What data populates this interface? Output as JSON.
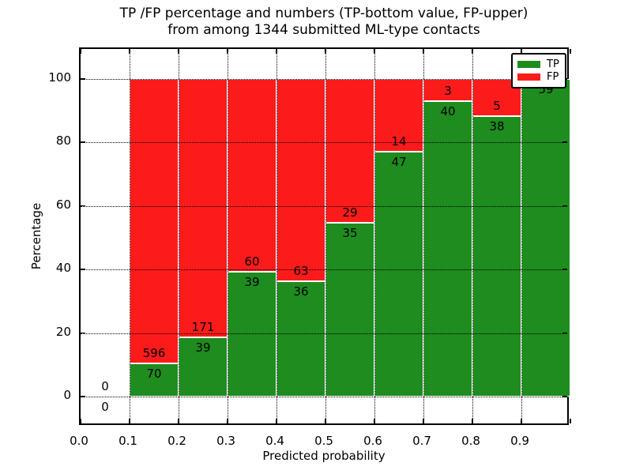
{
  "figure": {
    "title_line1": "TP /FP percentage and numbers (TP-bottom value, FP-upper)",
    "title_line2": "from among 1344 submitted ML-type contacts"
  },
  "chart_data": {
    "type": "bar",
    "stacked": true,
    "orientation": "vertical",
    "title": "TP /FP percentage and numbers (TP-bottom value, FP-upper) from among 1344 submitted ML-type contacts",
    "total_contacts": 1344,
    "xlabel": "Predicted probability",
    "ylabel": "Percentage",
    "xlim": [
      0.0,
      1.0
    ],
    "ylim": [
      -10,
      110
    ],
    "xtick_labels": [
      "0.0",
      "0.1",
      "0.2",
      "0.3",
      "0.4",
      "0.5",
      "0.6",
      "0.7",
      "0.8",
      "0.9"
    ],
    "xtick_values": [
      0.0,
      0.1,
      0.2,
      0.3,
      0.4,
      0.5,
      0.6,
      0.7,
      0.8,
      0.9
    ],
    "ytick_values": [
      0,
      20,
      40,
      60,
      80,
      100
    ],
    "grid": "dotted",
    "bar_edge_color": "#ffffff",
    "colors": {
      "tp": "#1e8c1e",
      "fp": "#fc1b1b"
    },
    "legend": {
      "position": "upper right",
      "entries": [
        {
          "label": "TP",
          "color": "#1e8c1e"
        },
        {
          "label": "FP",
          "color": "#fc1b1b"
        }
      ]
    },
    "annotation_note": "FP count shown above TP/FP boundary, TP count shown below it",
    "bins": [
      {
        "range": [
          0.0,
          0.1
        ],
        "tp": 0,
        "fp": 0
      },
      {
        "range": [
          0.1,
          0.2
        ],
        "tp": 70,
        "fp": 596
      },
      {
        "range": [
          0.2,
          0.3
        ],
        "tp": 39,
        "fp": 171
      },
      {
        "range": [
          0.3,
          0.4
        ],
        "tp": 39,
        "fp": 60
      },
      {
        "range": [
          0.4,
          0.5
        ],
        "tp": 36,
        "fp": 63
      },
      {
        "range": [
          0.5,
          0.6
        ],
        "tp": 35,
        "fp": 29
      },
      {
        "range": [
          0.6,
          0.7
        ],
        "tp": 47,
        "fp": 14
      },
      {
        "range": [
          0.7,
          0.8
        ],
        "tp": 40,
        "fp": 3
      },
      {
        "range": [
          0.8,
          0.9
        ],
        "tp": 38,
        "fp": 5
      },
      {
        "range": [
          0.9,
          1.0
        ],
        "tp": 59,
        "fp": 0
      }
    ]
  }
}
